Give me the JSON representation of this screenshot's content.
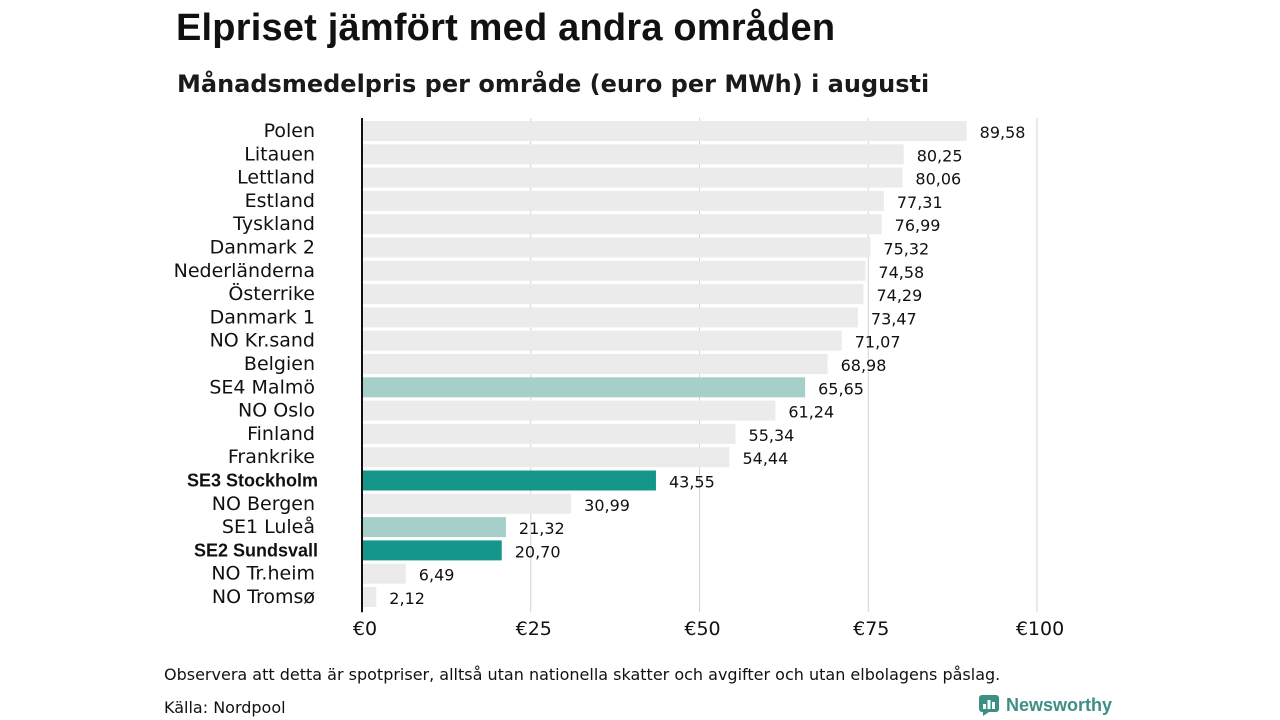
{
  "header": {
    "title": "Elpriset jämfört med andra områden",
    "subtitle": "Månadsmedelpris per område (euro per MWh) i augusti"
  },
  "footer": {
    "note": "Observera att detta är spotpriser, alltså utan nationella skatter och avgifter och utan elbolagens påslag.",
    "source": "Källa: Nordpool",
    "brand": "Newsworthy"
  },
  "colors": {
    "default_bar": "#ebebeb",
    "light_highlight": "#a6cfc9",
    "dark_highlight": "#14978a",
    "gridline": "#d4d4d4",
    "axis": "#111111",
    "brand": "#3d8f86"
  },
  "chart_data": {
    "type": "bar",
    "orientation": "horizontal",
    "title": "Elpriset jämfört med andra områden",
    "subtitle": "Månadsmedelpris per område (euro per MWh) i augusti",
    "categories": [
      "Polen",
      "Litauen",
      "Lettland",
      "Estland",
      "Tyskland",
      "Danmark 2",
      "Nederländerna",
      "Österrike",
      "Danmark 1",
      "NO Kr.sand",
      "Belgien",
      "SE4 Malmö",
      "NO Oslo",
      "Finland",
      "Frankrike",
      "SE3 Stockholm",
      "NO Bergen",
      "SE1 Luleå",
      "SE2 Sundsvall",
      "NO Tr.heim",
      "NO Tromsø"
    ],
    "values": [
      89.58,
      80.25,
      80.06,
      77.31,
      76.99,
      75.32,
      74.58,
      74.29,
      73.47,
      71.07,
      68.98,
      65.65,
      61.24,
      55.34,
      54.44,
      43.55,
      30.99,
      21.32,
      20.7,
      6.49,
      2.12
    ],
    "value_labels": [
      "89,58",
      "80,25",
      "80,06",
      "77,31",
      "76,99",
      "75,32",
      "74,58",
      "74,29",
      "73,47",
      "71,07",
      "68,98",
      "65,65",
      "61,24",
      "55,34",
      "54,44",
      "43,55",
      "30,99",
      "21,32",
      "20,70",
      "6,49",
      "2,12"
    ],
    "highlight": [
      "none",
      "none",
      "none",
      "none",
      "none",
      "none",
      "none",
      "none",
      "none",
      "none",
      "none",
      "light",
      "none",
      "none",
      "none",
      "dark",
      "none",
      "light",
      "dark",
      "none",
      "none"
    ],
    "bold_labels": [
      "SE3 Stockholm",
      "SE2 Sundsvall"
    ],
    "xlim": [
      0,
      100
    ],
    "xticks": [
      0,
      25,
      50,
      75,
      100
    ],
    "xtick_labels": [
      "€0",
      "€25",
      "€50",
      "€75",
      "€100"
    ],
    "grid": true,
    "legend": "none"
  }
}
